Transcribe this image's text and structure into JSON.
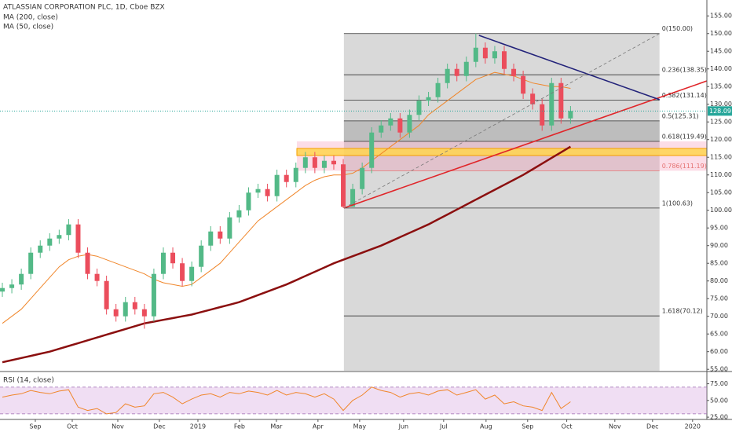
{
  "chart_data": {
    "type": "candlestick",
    "title": "ATLASSIAN CORPORATION PLC, 1D, Cboe BZX",
    "categories": [
      null,
      null,
      null,
      null,
      null,
      null,
      null,
      null,
      null,
      null,
      null,
      null,
      null,
      null,
      null,
      null,
      null,
      null,
      null,
      null,
      null,
      null,
      null,
      null,
      null,
      null,
      null,
      null,
      null,
      null,
      null,
      null,
      null,
      null,
      null,
      null,
      null,
      null,
      null,
      null,
      null,
      null,
      null,
      null,
      null,
      null,
      null,
      null,
      null,
      null,
      null,
      null,
      null,
      null,
      null,
      null,
      null,
      null,
      null,
      null,
      null
    ],
    "open": [
      77,
      78,
      79,
      82,
      88,
      90,
      92,
      93,
      96,
      88,
      82,
      80,
      72,
      70,
      74,
      72,
      70,
      82,
      88,
      85,
      80,
      84,
      90,
      94,
      92,
      98,
      100,
      105,
      106,
      104,
      110,
      108,
      112,
      115,
      112,
      114,
      113,
      101,
      106,
      112,
      122,
      124,
      126,
      122,
      127,
      131,
      132,
      136,
      140,
      138,
      142,
      146,
      143,
      145,
      140,
      138,
      133,
      130,
      124,
      136,
      126
    ],
    "high": [
      79.5,
      80.5,
      83.5,
      89.5,
      91.5,
      93.5,
      94.5,
      97.5,
      97.5,
      89.5,
      83.5,
      81.5,
      73.5,
      75.5,
      75.5,
      73.5,
      83.5,
      89.5,
      89.5,
      86.5,
      85.5,
      91.5,
      95.5,
      95.5,
      99.5,
      101.5,
      106.5,
      107.5,
      107.5,
      111.5,
      111.5,
      113.5,
      116.5,
      116.5,
      115.5,
      115.5,
      114.5,
      107.5,
      113.5,
      123.5,
      125.5,
      127.5,
      127.5,
      128.5,
      132.5,
      133.5,
      137.5,
      141.5,
      141.5,
      143.5,
      150,
      147.5,
      146.5,
      146.5,
      141.5,
      139.5,
      134.5,
      131.5,
      137.5,
      137.5,
      129.5
    ],
    "low": [
      75.5,
      76.5,
      77.5,
      80.5,
      86.5,
      88.5,
      90.5,
      91.5,
      86.5,
      80.5,
      78.5,
      70.5,
      68.5,
      68.5,
      70.5,
      66.5,
      68.5,
      80.5,
      83.5,
      78.5,
      78.5,
      82.5,
      88.5,
      90.5,
      90.5,
      96.5,
      98.5,
      103.5,
      102.5,
      102.5,
      106.5,
      106.5,
      110.5,
      110.5,
      110.5,
      111.5,
      100.63,
      101,
      104.5,
      110.5,
      120.5,
      122.5,
      120.5,
      120.5,
      125.5,
      129.5,
      130.5,
      134.5,
      136.5,
      136.5,
      140.5,
      141.5,
      141.5,
      138.5,
      136.5,
      131.5,
      128.5,
      122.5,
      122.5,
      124.5,
      124.5
    ],
    "close": [
      78,
      79,
      82,
      88,
      90,
      92,
      93,
      96,
      88,
      82,
      80,
      72,
      70,
      74,
      72,
      70,
      82,
      88,
      85,
      80,
      84,
      90,
      94,
      92,
      98,
      100,
      105,
      106,
      104,
      110,
      108,
      112,
      115,
      112,
      114,
      113,
      101,
      106,
      112,
      122,
      124,
      126,
      122,
      127,
      131,
      132,
      136,
      140,
      138,
      142,
      146,
      143,
      145,
      140,
      138,
      133,
      130,
      124,
      136,
      126,
      128.09
    ],
    "up_color": "#53b987",
    "down_color": "#eb4d5c",
    "ylim": [
      54.6,
      159.5
    ],
    "yticks": [
      {
        "value": 55,
        "label": "55.00"
      },
      {
        "value": 60,
        "label": "60.00"
      },
      {
        "value": 65,
        "label": "65.00"
      },
      {
        "value": 70,
        "label": "70.00"
      },
      {
        "value": 75,
        "label": "75.00"
      },
      {
        "value": 80,
        "label": "80.00"
      },
      {
        "value": 85,
        "label": "85.00"
      },
      {
        "value": 90,
        "label": "90.00"
      },
      {
        "value": 95,
        "label": "95.00"
      },
      {
        "value": 100,
        "label": "100.00"
      },
      {
        "value": 105,
        "label": "105.00"
      },
      {
        "value": 110,
        "label": "110.00"
      },
      {
        "value": 115,
        "label": "115.00"
      },
      {
        "value": 120,
        "label": "120.00"
      },
      {
        "value": 125,
        "label": "125.00"
      },
      {
        "value": 130,
        "label": "130.00"
      },
      {
        "value": 135,
        "label": "135.00"
      },
      {
        "value": 140,
        "label": "140.00"
      },
      {
        "value": 145,
        "label": "145.00"
      },
      {
        "value": 150,
        "label": "150.00"
      },
      {
        "value": 155,
        "label": "155.00"
      }
    ],
    "xlim": [
      -0.25,
      74.4
    ],
    "xticks": [
      {
        "value": 3.48,
        "label": "Sep"
      },
      {
        "value": 7.38,
        "label": "Oct"
      },
      {
        "value": 12.19,
        "label": "Nov"
      },
      {
        "value": 16.58,
        "label": "Dec"
      },
      {
        "value": 20.65,
        "label": "2019"
      },
      {
        "value": 25.04,
        "label": "Feb"
      },
      {
        "value": 28.94,
        "label": "Mar"
      },
      {
        "value": 33.33,
        "label": "Apr"
      },
      {
        "value": 37.73,
        "label": "May"
      },
      {
        "value": 42.37,
        "label": "Jun"
      },
      {
        "value": 46.6,
        "label": "Jul"
      },
      {
        "value": 51.08,
        "label": "Aug"
      },
      {
        "value": 55.47,
        "label": "Sep"
      },
      {
        "value": 59.6,
        "label": "Oct"
      },
      {
        "value": 64.68,
        "label": "Nov"
      },
      {
        "value": 68.66,
        "label": "Dec"
      },
      {
        "value": 72.89,
        "label": "2020"
      }
    ],
    "series": [
      {
        "name": "MA (200, close)",
        "color": "#8b0f0f",
        "values": [
          57,
          57.6,
          58.2,
          58.8,
          59.4,
          60,
          60.8,
          61.6,
          62.4,
          63.2,
          64,
          64.8,
          65.6,
          66.4,
          67.2,
          68,
          68.5,
          69,
          69.5,
          70,
          70.5,
          71.2,
          71.9,
          72.6,
          73.3,
          74,
          75,
          76,
          77,
          78,
          79,
          80.2,
          81.4,
          82.6,
          83.8,
          85,
          86,
          87,
          88,
          89,
          90,
          91.2,
          92.4,
          93.6,
          94.8,
          96,
          97.4,
          98.8,
          100.2,
          101.6,
          103,
          104.4,
          105.8,
          107.2,
          108.6,
          110,
          111.6,
          113.2,
          114.8,
          116.4,
          118
        ]
      },
      {
        "name": "MA (50, close)",
        "color": "#f0862a",
        "values": [
          68,
          70,
          72,
          75,
          78,
          81,
          84,
          86,
          87,
          87.5,
          87,
          86,
          85,
          84,
          83,
          82,
          80.5,
          79.5,
          79,
          78.5,
          79,
          81,
          83,
          85,
          88,
          91,
          94,
          97,
          99,
          101,
          103,
          105,
          107,
          108.5,
          109.5,
          110,
          110,
          110.5,
          112,
          114,
          116,
          118,
          120,
          122,
          124,
          127,
          129,
          131,
          133,
          135,
          137,
          138,
          139,
          138.5,
          138,
          137,
          136,
          135.5,
          135,
          135,
          134.5
        ]
      }
    ],
    "fib": {
      "start": 36.07,
      "end": 69.4,
      "levels": [
        {
          "label": "0(150.00)",
          "value": 150,
          "color": "#333333"
        },
        {
          "label": "0.236(138.35)",
          "value": 138.35,
          "color": "#333333"
        },
        {
          "label": "0.382(131.14)",
          "value": 131.14,
          "color": "#333333"
        },
        {
          "label": "0.5(125.31)",
          "value": 125.31,
          "color": "#333333"
        },
        {
          "label": "0.618(119.49)",
          "value": 119.49,
          "color": "#333333"
        },
        {
          "label": "0.786(111.19)",
          "value": 111.19,
          "color": "#e57373"
        },
        {
          "label": "1(100.63)",
          "value": 100.63,
          "color": "#333333"
        },
        {
          "label": "1.618(70.12)",
          "value": 70.12,
          "color": "#333333"
        }
      ]
    },
    "zone": {
      "start": 31.1,
      "top": 117.5,
      "bottom": 115.5
    },
    "lines": [
      {
        "color": "#e0262a",
        "dash": false,
        "points": [
          [
            36.07,
            100.63
          ],
          [
            74.4,
            136.6
          ]
        ]
      },
      {
        "color": "#23237a",
        "dash": false,
        "points": [
          [
            50.33,
            149.5
          ],
          [
            69.4,
            131.3
          ]
        ]
      },
      {
        "color": "#777777",
        "dash": true,
        "points": [
          [
            36.07,
            100.63
          ],
          [
            69.4,
            150
          ]
        ]
      }
    ],
    "price_color": "#26a69a",
    "rsi": {
      "name": "RSI (14, close)",
      "color": "#f0862a",
      "ylim": [
        21.6,
        89.8
      ],
      "bands": [
        30,
        70
      ],
      "yticks": [
        {
          "value": 75,
          "label": "75.00"
        },
        {
          "value": 50,
          "label": "50.00"
        },
        {
          "value": 25,
          "label": "25.00"
        }
      ],
      "values": [
        55,
        58,
        60,
        65,
        62,
        60,
        64,
        66,
        40,
        35,
        38,
        30,
        32,
        45,
        40,
        42,
        60,
        62,
        55,
        45,
        52,
        58,
        60,
        55,
        62,
        60,
        64,
        62,
        58,
        65,
        58,
        62,
        60,
        55,
        60,
        52,
        35,
        50,
        58,
        70,
        65,
        62,
        55,
        60,
        62,
        58,
        64,
        66,
        58,
        62,
        66,
        52,
        58,
        45,
        48,
        42,
        40,
        35,
        62,
        38,
        48
      ]
    }
  }
}
